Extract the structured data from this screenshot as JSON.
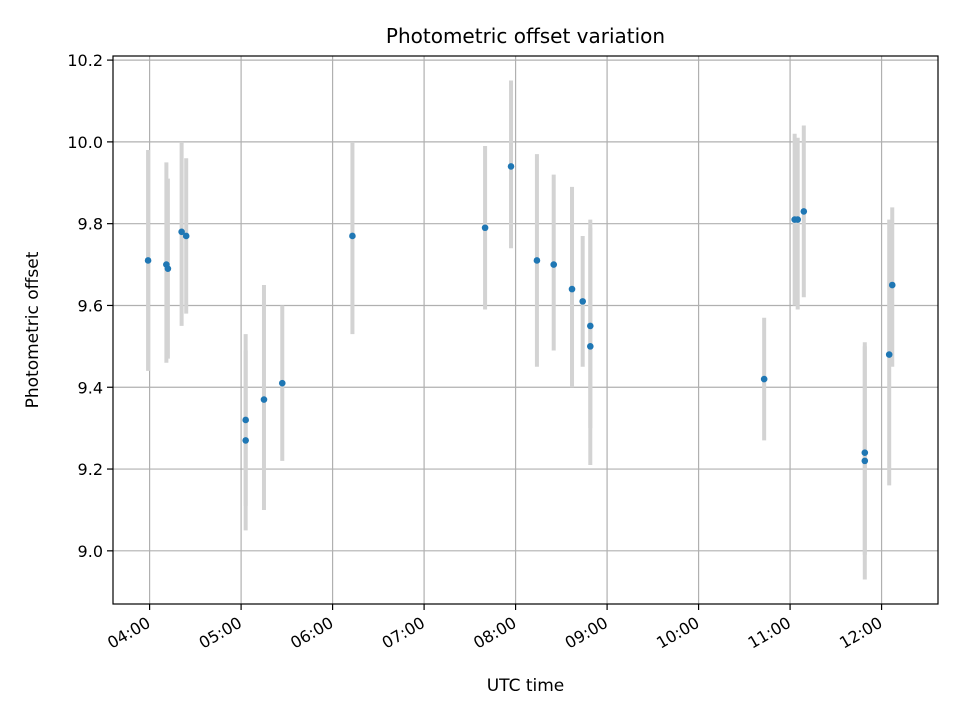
{
  "chart_data": {
    "type": "scatter",
    "title": "Photometric offset variation",
    "xlabel": "UTC time",
    "ylabel": "Photometric offset",
    "x_axis_type": "time",
    "xlim": [
      "03:36",
      "12:37"
    ],
    "ylim": [
      8.87,
      10.21
    ],
    "x_ticks": [
      "04:00",
      "05:00",
      "06:00",
      "07:00",
      "08:00",
      "09:00",
      "10:00",
      "11:00",
      "12:00"
    ],
    "y_ticks": [
      9.0,
      9.2,
      9.4,
      9.6,
      9.8,
      10.0,
      10.2
    ],
    "y_tick_labels": [
      "9.0",
      "9.2",
      "9.4",
      "9.6",
      "9.8",
      "10.0",
      "10.2"
    ],
    "grid": true,
    "marker_color": "#1f77b4",
    "errorbar_color": "#d3d3d3",
    "points": [
      {
        "x": "03:59",
        "y": 9.71,
        "err_low": 9.44,
        "err_high": 9.98
      },
      {
        "x": "04:11",
        "y": 9.7,
        "err_low": 9.46,
        "err_high": 9.95
      },
      {
        "x": "04:12",
        "y": 9.69,
        "err_low": 9.47,
        "err_high": 9.91
      },
      {
        "x": "04:21",
        "y": 9.78,
        "err_low": 9.55,
        "err_high": 10.0
      },
      {
        "x": "04:24",
        "y": 9.77,
        "err_low": 9.58,
        "err_high": 9.96
      },
      {
        "x": "05:03",
        "y": 9.32,
        "err_low": 9.11,
        "err_high": 9.53
      },
      {
        "x": "05:03",
        "y": 9.27,
        "err_low": 9.05,
        "err_high": 9.49
      },
      {
        "x": "05:15",
        "y": 9.37,
        "err_low": 9.1,
        "err_high": 9.65
      },
      {
        "x": "05:27",
        "y": 9.41,
        "err_low": 9.22,
        "err_high": 9.6
      },
      {
        "x": "06:13",
        "y": 9.77,
        "err_low": 9.53,
        "err_high": 10.0
      },
      {
        "x": "07:40",
        "y": 9.79,
        "err_low": 9.59,
        "err_high": 9.99
      },
      {
        "x": "07:57",
        "y": 9.94,
        "err_low": 9.74,
        "err_high": 10.15
      },
      {
        "x": "08:14",
        "y": 9.71,
        "err_low": 9.45,
        "err_high": 9.97
      },
      {
        "x": "08:25",
        "y": 9.7,
        "err_low": 9.49,
        "err_high": 9.92
      },
      {
        "x": "08:37",
        "y": 9.64,
        "err_low": 9.4,
        "err_high": 9.89
      },
      {
        "x": "08:44",
        "y": 9.61,
        "err_low": 9.45,
        "err_high": 9.77
      },
      {
        "x": "08:49",
        "y": 9.55,
        "err_low": 9.3,
        "err_high": 9.81
      },
      {
        "x": "08:49",
        "y": 9.5,
        "err_low": 9.21,
        "err_high": 9.79
      },
      {
        "x": "10:43",
        "y": 9.42,
        "err_low": 9.27,
        "err_high": 9.57
      },
      {
        "x": "11:03",
        "y": 9.81,
        "err_low": 9.6,
        "err_high": 10.02
      },
      {
        "x": "11:05",
        "y": 9.81,
        "err_low": 9.59,
        "err_high": 10.01
      },
      {
        "x": "11:09",
        "y": 9.83,
        "err_low": 9.62,
        "err_high": 10.04
      },
      {
        "x": "11:49",
        "y": 9.24,
        "err_low": 8.99,
        "err_high": 9.5
      },
      {
        "x": "11:49",
        "y": 9.22,
        "err_low": 8.93,
        "err_high": 9.51
      },
      {
        "x": "12:05",
        "y": 9.48,
        "err_low": 9.16,
        "err_high": 9.81
      },
      {
        "x": "12:07",
        "y": 9.65,
        "err_low": 9.45,
        "err_high": 9.84
      }
    ]
  }
}
